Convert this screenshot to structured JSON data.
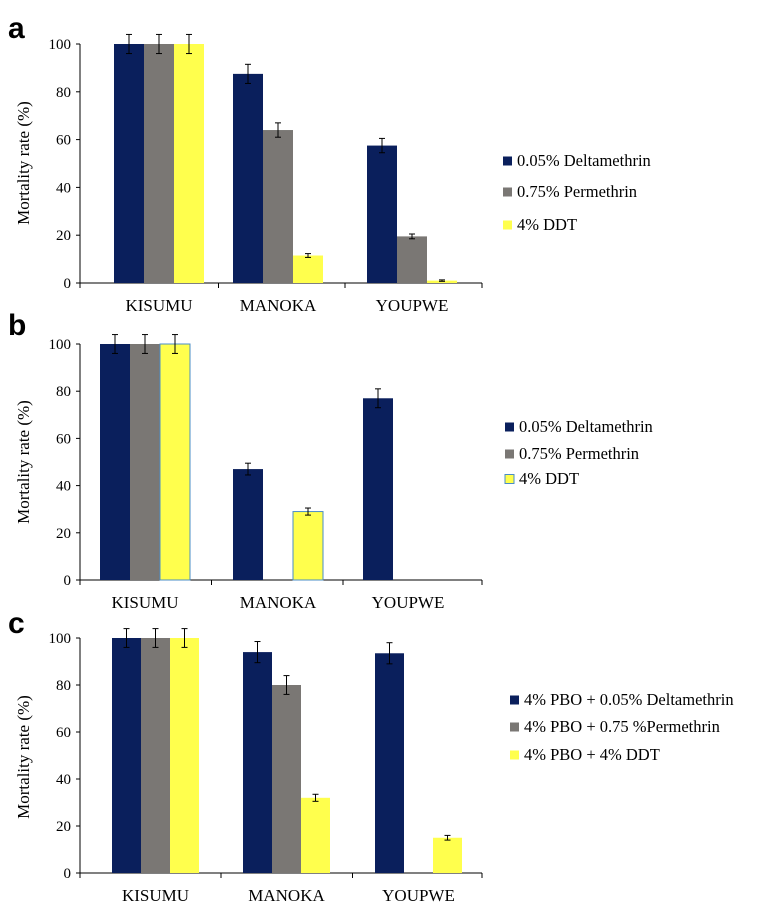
{
  "colors": {
    "deltamethrin": "#0a1f5c",
    "permethrin": "#7a7774",
    "ddt": "#ffff4d",
    "ddt_outline_b": "#4a8cc7"
  },
  "chart_data": [
    {
      "panel": "a",
      "type": "bar",
      "categories": [
        "KISUMU",
        "MANOKA",
        "YOUPWE"
      ],
      "ylabel": "Mortality rate (%)",
      "ylim": [
        0,
        100
      ],
      "yticks": [
        0,
        20,
        40,
        60,
        80,
        100
      ],
      "grid": false,
      "legend_position": "right",
      "series": [
        {
          "name": "0.05% Deltamethrin",
          "values": [
            100,
            87.5,
            57.5
          ],
          "errors": [
            4,
            4,
            3
          ],
          "color_key": "deltamethrin"
        },
        {
          "name": "0.75% Permethrin",
          "values": [
            100,
            64,
            19.5
          ],
          "errors": [
            4,
            3,
            1
          ],
          "color_key": "permethrin"
        },
        {
          "name": "4% DDT",
          "values": [
            100,
            11.5,
            1
          ],
          "errors": [
            4,
            0.8,
            0.3
          ],
          "color_key": "ddt"
        }
      ]
    },
    {
      "panel": "b",
      "type": "bar",
      "categories": [
        "KISUMU",
        "MANOKA",
        "YOUPWE"
      ],
      "ylabel": "Mortality rate (%)",
      "ylim": [
        0,
        100
      ],
      "yticks": [
        0,
        20,
        40,
        60,
        80,
        100
      ],
      "grid": false,
      "legend_position": "right",
      "series": [
        {
          "name": "0.05% Deltamethrin",
          "values": [
            100,
            47,
            77
          ],
          "errors": [
            4,
            2.5,
            4
          ],
          "color_key": "deltamethrin"
        },
        {
          "name": "0.75% Permethrin",
          "values": [
            100,
            null,
            null
          ],
          "errors": [
            4,
            null,
            null
          ],
          "color_key": "permethrin"
        },
        {
          "name": "4% DDT",
          "values": [
            100,
            29,
            null
          ],
          "errors": [
            4,
            1.5,
            null
          ],
          "color_key": "ddt"
        }
      ]
    },
    {
      "panel": "c",
      "type": "bar",
      "categories": [
        "KISUMU",
        "MANOKA",
        "YOUPWE"
      ],
      "ylabel": "Mortality rate  (%)",
      "ylim": [
        0,
        100
      ],
      "yticks": [
        0,
        20,
        40,
        60,
        80,
        100
      ],
      "grid": false,
      "legend_position": "right",
      "series": [
        {
          "name": "4% PBO + 0.05% Deltamethrin",
          "values": [
            100,
            94,
            93.5
          ],
          "errors": [
            4,
            4.5,
            4.5
          ],
          "color_key": "deltamethrin"
        },
        {
          "name": "4% PBO + 0.75 %Permethrin",
          "values": [
            100,
            80,
            null
          ],
          "errors": [
            4,
            4,
            null
          ],
          "color_key": "permethrin"
        },
        {
          "name": "4% PBO + 4% DDT",
          "values": [
            100,
            32,
            15
          ],
          "errors": [
            4,
            1.5,
            1
          ],
          "color_key": "ddt"
        }
      ]
    }
  ]
}
